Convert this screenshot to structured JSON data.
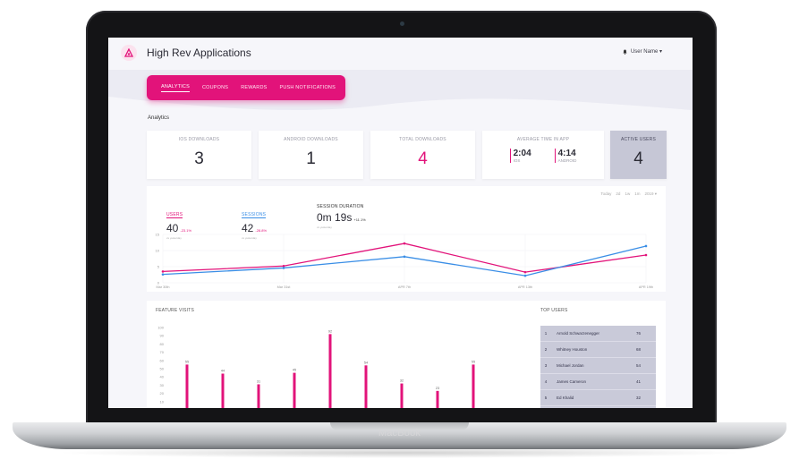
{
  "device": {
    "brand": "MacBook"
  },
  "app": {
    "title": "High Rev Applications",
    "user": "User Name ▾"
  },
  "nav": {
    "tabs": [
      "ANALYTICS",
      "COUPONS",
      "REWARDS",
      "PUSH NOTIFICATIONS"
    ]
  },
  "section": {
    "title": "Analytics"
  },
  "stats": {
    "ios": {
      "label": "IOS DOWNLOADS",
      "value": "3"
    },
    "android": {
      "label": "ANDROID DOWNLOADS",
      "value": "1"
    },
    "total": {
      "label": "TOTAL DOWNLOADS",
      "value": "4"
    },
    "avg": {
      "label": "AVERAGE TIME IN APP",
      "ios_time": "2:04",
      "ios_label": "IOS",
      "android_time": "4:14",
      "android_label": "ANDROID"
    },
    "active": {
      "label": "ACTIVE USERS",
      "value": "4"
    }
  },
  "ranges": [
    "Today",
    "2d",
    "1w",
    "1m",
    "2019 ▾"
  ],
  "metrics": {
    "users": {
      "label": "USERS",
      "value": "40",
      "delta": "-23.1%",
      "sub": "vs yesterday"
    },
    "sessions": {
      "label": "SESSIONS",
      "value": "42",
      "delta": "-28.8%",
      "sub": "vs yesterday"
    },
    "duration": {
      "label": "SESSION DURATION",
      "value": "0m 19s",
      "delta": "+11.1%",
      "sub": "vs yesterday"
    }
  },
  "colors": {
    "accent": "#e2137a",
    "blue": "#3a8ee6",
    "active_card": "#c6c7d6"
  },
  "chart_data": [
    {
      "type": "line",
      "x": [
        "Mar 30th",
        "Mar 31st",
        "APR 7th",
        "APR 13th",
        "APR 19th"
      ],
      "ylim": [
        0,
        15
      ],
      "yticks": [
        0,
        5,
        10,
        15
      ],
      "series": [
        {
          "name": "USERS",
          "color": "#e2137a",
          "values": [
            3.5,
            5.2,
            12.2,
            3.3,
            8.6
          ]
        },
        {
          "name": "SESSIONS",
          "color": "#3a8ee6",
          "values": [
            2.6,
            4.6,
            8.1,
            2.2,
            11.4
          ]
        }
      ]
    },
    {
      "type": "bar",
      "title": "FEATURE VISITS",
      "ylim": [
        0,
        100
      ],
      "yticks": [
        0,
        10,
        20,
        30,
        40,
        50,
        60,
        70,
        80,
        90,
        100
      ],
      "values": [
        55,
        44,
        31,
        45,
        92,
        54,
        32,
        23,
        55,
        0
      ],
      "color": "#e2137a"
    }
  ],
  "top_users": {
    "title": "TOP USERS",
    "rows": [
      {
        "rank": "1",
        "name": "Arnold Schwarzenegger",
        "score": "76"
      },
      {
        "rank": "2",
        "name": "Whitney Houston",
        "score": "68"
      },
      {
        "rank": "3",
        "name": "Michael Jordan",
        "score": "54"
      },
      {
        "rank": "4",
        "name": "James Cameron",
        "score": "41"
      },
      {
        "rank": "5",
        "name": "Ed Khalid",
        "score": "32"
      }
    ]
  }
}
